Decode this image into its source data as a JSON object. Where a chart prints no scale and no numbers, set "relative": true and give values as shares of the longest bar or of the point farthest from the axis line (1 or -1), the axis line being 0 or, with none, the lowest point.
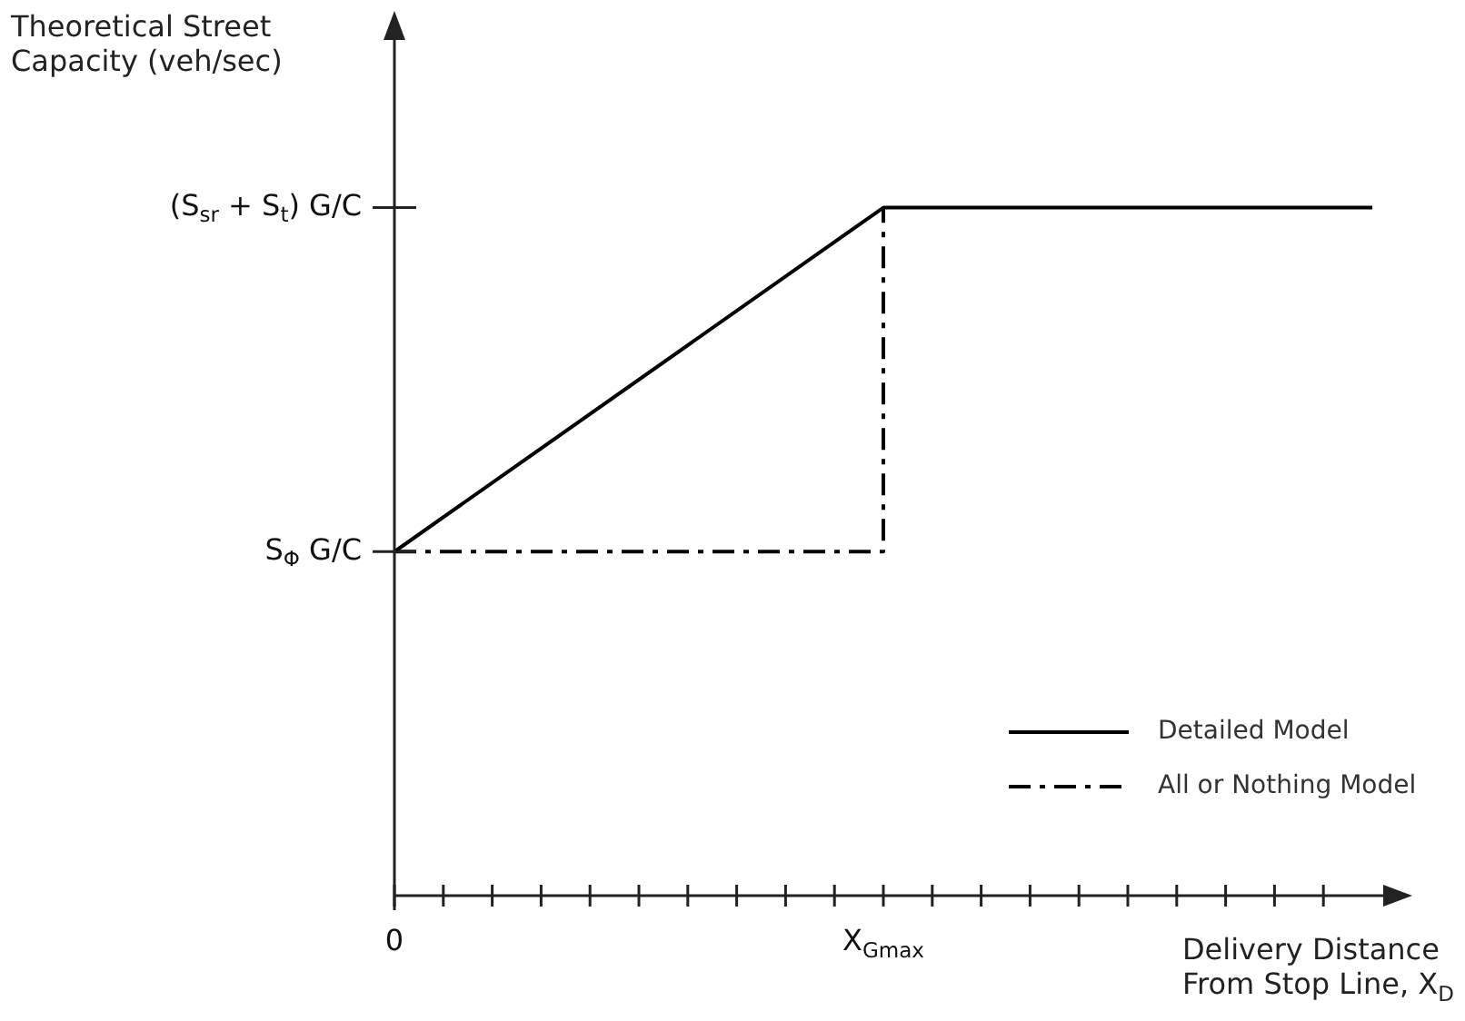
{
  "chart_data": {
    "type": "line",
    "relative": true,
    "xlabel": "Delivery Distance From Stop Line, X$_{D}$",
    "categories": [
      "0",
      null,
      null,
      null,
      null,
      null,
      null,
      null,
      null,
      null,
      "X$_{Gmax}$",
      null,
      null,
      null,
      null,
      null,
      null,
      null,
      null,
      null,
      null
    ],
    "series": [
      {
        "name": "Detailed Model",
        "color": "#000000",
        "values": [
          0.5,
          null,
          null,
          null,
          null,
          null,
          null,
          null,
          null,
          null,
          1,
          null,
          null,
          null,
          null,
          null,
          null,
          null,
          null,
          null,
          1
        ],
        "line_style": "solid"
      },
      {
        "name": "All or Nothing Model",
        "color": "#000000",
        "x": [
          "0",
          "X$_{Gmax}$",
          "X$_{Gmax}$"
        ],
        "values": [
          0.5,
          0.5,
          1
        ],
        "line_style": "dashed"
      }
    ],
    "annotations": [
      "S$_{Φ}$ G/C",
      "(S$_{sr}$ + S$_{t}$) G/C",
      "Theoretical Street Capacity (veh/sec)"
    ],
    "legend": "bottom right",
    "marker": "none"
  }
}
